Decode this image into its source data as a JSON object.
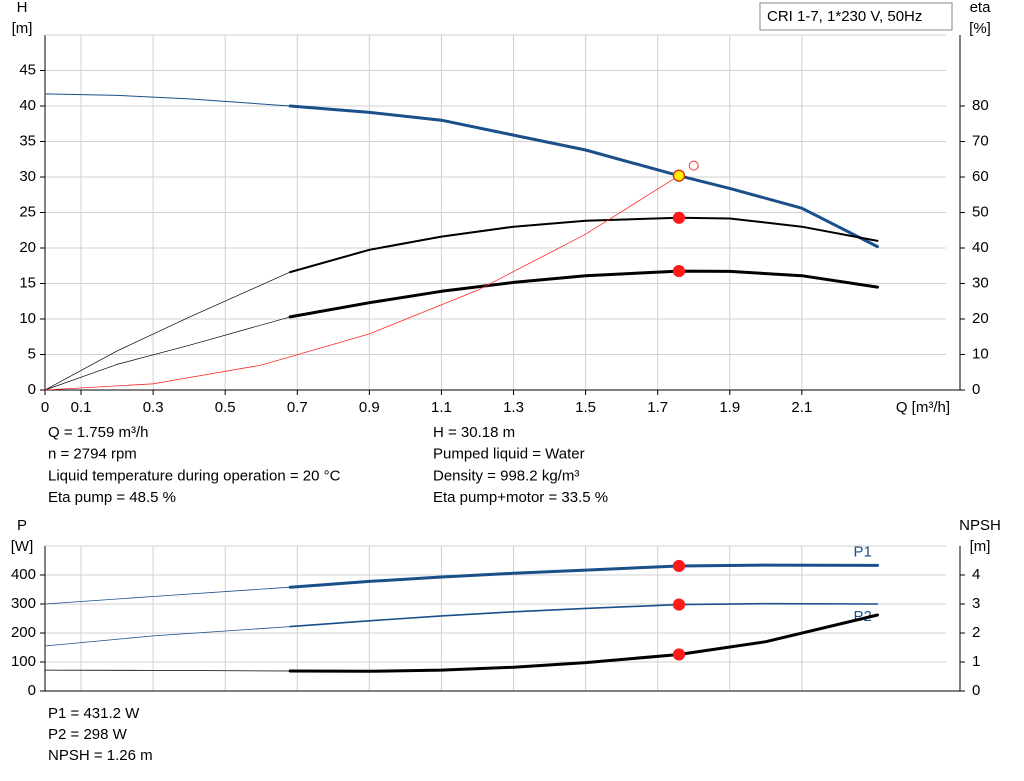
{
  "chart_data": [
    {
      "type": "line",
      "title": "CRI 1-7, 1*230 V, 50Hz",
      "ylabel": "H",
      "yunit": "[m]",
      "y2label": "eta",
      "y2unit": "[%]",
      "xlabel": "Q [m³/h]",
      "xlim": [
        0,
        2.5
      ],
      "xticks": [
        0,
        0.1,
        0.3,
        0.5,
        0.7,
        0.9,
        1.1,
        1.3,
        1.5,
        1.7,
        1.9,
        2.1
      ],
      "ylim": [
        0,
        50
      ],
      "yticks": [
        0,
        5,
        10,
        15,
        20,
        25,
        30,
        35,
        40,
        45
      ],
      "y2lim": [
        0,
        100
      ],
      "y2ticks": [
        0,
        10,
        20,
        30,
        40,
        50,
        60,
        70,
        80
      ],
      "grid": true,
      "series": [
        {
          "color": "#1a4f8a",
          "width": 1,
          "axis": "y",
          "x": [
            0,
            0.2,
            0.4,
            0.68
          ],
          "values": [
            41.7,
            41.5,
            41.0,
            40.0
          ]
        },
        {
          "color": "#1a4f8a",
          "width": 3,
          "axis": "y",
          "x": [
            0.68,
            0.9,
            1.1,
            1.3,
            1.5,
            1.759,
            1.9,
            2.1,
            2.31
          ],
          "values": [
            40.0,
            39.1,
            38.0,
            35.9,
            33.8,
            30.18,
            28.4,
            25.6,
            20.2
          ]
        },
        {
          "color": "#000000",
          "width": 0.7,
          "axis": "y2",
          "x": [
            0,
            0.2,
            0.4,
            0.68
          ],
          "values": [
            0,
            11,
            20.5,
            33.2
          ]
        },
        {
          "color": "#000000",
          "width": 2,
          "axis": "y2",
          "x": [
            0.68,
            0.9,
            1.1,
            1.3,
            1.5,
            1.759,
            1.9,
            2.1,
            2.31
          ],
          "values": [
            33.2,
            39.5,
            43.2,
            46.0,
            47.7,
            48.5,
            48.3,
            46.0,
            42.0
          ]
        },
        {
          "color": "#000000",
          "width": 0.7,
          "axis": "y2",
          "x": [
            0,
            0.2,
            0.4,
            0.68
          ],
          "values": [
            0,
            7.2,
            12.6,
            20.6
          ]
        },
        {
          "color": "#000000",
          "width": 3,
          "axis": "y2",
          "x": [
            0.68,
            0.9,
            1.1,
            1.3,
            1.5,
            1.759,
            1.9,
            2.1,
            2.31
          ],
          "values": [
            20.6,
            24.6,
            27.8,
            30.3,
            32.2,
            33.5,
            33.4,
            32.2,
            29.0
          ]
        },
        {
          "color": "#ff2a2a",
          "width": 0.8,
          "axis": "y",
          "x": [
            0,
            0.3,
            0.6,
            0.9,
            1.2,
            1.5,
            1.759
          ],
          "values": [
            0,
            0.88,
            3.51,
            7.9,
            14.04,
            21.94,
            30.18
          ]
        }
      ],
      "points": [
        {
          "x": 1.8,
          "y": 31.6,
          "axis": "y",
          "color": "#ff2a2a",
          "open": true
        },
        {
          "x": 1.759,
          "y": 30.18,
          "axis": "y",
          "color": "#ffee00"
        },
        {
          "x": 1.759,
          "y": 48.5,
          "axis": "y2",
          "color": "#ff1a1a"
        },
        {
          "x": 1.759,
          "y": 33.5,
          "axis": "y2",
          "color": "#ff1a1a"
        }
      ],
      "info": [
        [
          "Q = 1.759 m³/h",
          "n = 2794 rpm",
          "Liquid temperature during operation = 20 °C",
          "Eta pump = 48.5 %"
        ],
        [
          "H = 30.18 m",
          "Pumped liquid = Water",
          "Density = 998.2 kg/m³",
          "Eta pump+motor = 33.5 %"
        ]
      ]
    },
    {
      "type": "line",
      "ylabel": "P",
      "yunit": "[W]",
      "y2label": "NPSH",
      "y2unit": "[m]",
      "xlim": [
        0,
        2.5
      ],
      "ylim": [
        0,
        500
      ],
      "yticks": [
        0,
        100,
        200,
        300,
        400
      ],
      "y2lim": [
        0,
        5
      ],
      "y2ticks": [
        0,
        1,
        2,
        3,
        4
      ],
      "grid": true,
      "series": [
        {
          "color": "#1a4f8a",
          "width": 0.8,
          "axis": "y",
          "x": [
            0,
            0.3,
            0.68
          ],
          "values": [
            300,
            326,
            358
          ]
        },
        {
          "name": "P1",
          "color": "#1a4f8a",
          "width": 3,
          "axis": "y",
          "x": [
            0.68,
            0.9,
            1.1,
            1.3,
            1.5,
            1.759,
            2.0,
            2.31
          ],
          "values": [
            358,
            378,
            393,
            406,
            417,
            431.2,
            434,
            433
          ]
        },
        {
          "color": "#1a4f8a",
          "width": 0.8,
          "axis": "y",
          "x": [
            0,
            0.3,
            0.68
          ],
          "values": [
            155,
            190,
            222
          ]
        },
        {
          "name": "P2",
          "color": "#1a4f8a",
          "width": 1.6,
          "axis": "y",
          "x": [
            0.68,
            0.9,
            1.1,
            1.3,
            1.5,
            1.759,
            2.0,
            2.31
          ],
          "values": [
            222,
            242,
            259,
            273,
            285,
            298,
            301,
            300
          ]
        },
        {
          "color": "#000000",
          "width": 0.8,
          "axis": "y2",
          "x": [
            0,
            0.3,
            0.68
          ],
          "values": [
            0.72,
            0.71,
            0.69
          ]
        },
        {
          "color": "#000000",
          "width": 3,
          "axis": "y2",
          "x": [
            0.68,
            0.9,
            1.1,
            1.3,
            1.5,
            1.759,
            2.0,
            2.31
          ],
          "values": [
            0.69,
            0.68,
            0.72,
            0.82,
            0.98,
            1.26,
            1.7,
            2.62
          ]
        }
      ],
      "points": [
        {
          "x": 1.759,
          "y": 431.2,
          "axis": "y",
          "color": "#ff1a1a"
        },
        {
          "x": 1.759,
          "y": 298,
          "axis": "y",
          "color": "#ff1a1a"
        },
        {
          "x": 1.759,
          "y": 1.26,
          "axis": "y2",
          "color": "#ff1a1a"
        }
      ],
      "info": [
        [
          "P1 = 431.2 W",
          "P2 = 298 W",
          "NPSH = 1.26 m"
        ]
      ]
    }
  ]
}
